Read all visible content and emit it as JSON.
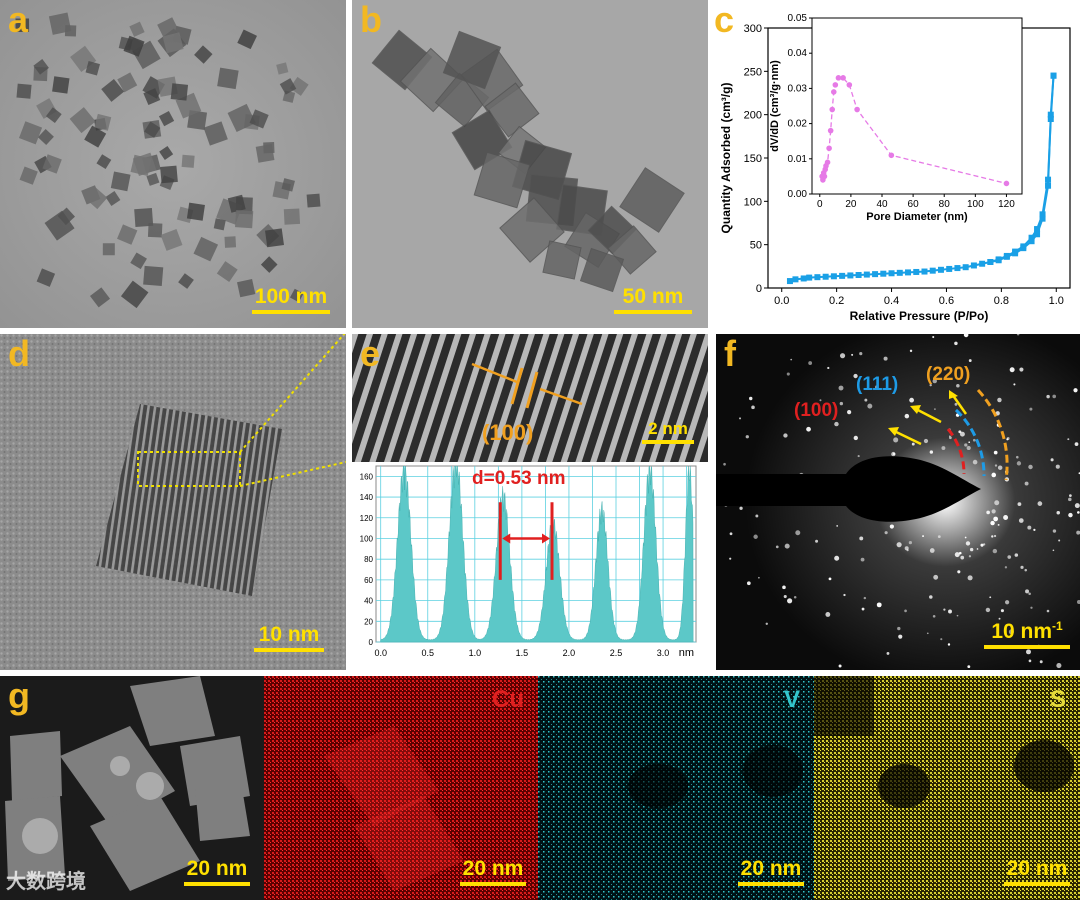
{
  "panels": {
    "a": {
      "label": "a",
      "scalebar": "100 nm"
    },
    "b": {
      "label": "b",
      "scalebar": "50 nm"
    },
    "c": {
      "label": "c"
    },
    "d": {
      "label": "d",
      "scalebar": "10 nm"
    },
    "e": {
      "label": "e",
      "scalebar": "2 nm",
      "plane": "(100)",
      "spacing": "d=0.53 nm"
    },
    "f": {
      "label": "f",
      "scalebar": "10 nm",
      "scalebar_sup": "-1",
      "rings": [
        "(100)",
        "(111)",
        "(220)"
      ]
    },
    "g": {
      "label": "g",
      "scalebar": "20 nm",
      "maps": [
        {
          "element": "Cu",
          "scalebar": "20 nm",
          "color": "#e02020"
        },
        {
          "element": "V",
          "scalebar": "20 nm",
          "color": "#33c6cc"
        },
        {
          "element": "S",
          "scalebar": "20 nm",
          "color": "#e6dc3a"
        }
      ]
    }
  },
  "watermark": "大数跨境",
  "colors": {
    "label_gold": "#f2b822",
    "scale_yellow": "#ffe000",
    "isotherm": "#1aa0e6",
    "pore": "#e67ae6",
    "profile_fill": "#5cc8c8",
    "red": "#e02020",
    "blue": "#1e9be6",
    "orange": "#f0a020"
  },
  "chart_data": [
    {
      "type": "line",
      "xlabel": "Relative Pressure (P/Po)",
      "ylabel": "Quantity Adsorbed (cm³/g)",
      "xlim": [
        -0.05,
        1.05
      ],
      "ylim": [
        0,
        300
      ],
      "xticks": [
        "0.0",
        "0.2",
        "0.4",
        "0.6",
        "0.8",
        "1.0"
      ],
      "yticks": [
        "0",
        "50",
        "100",
        "150",
        "200",
        "250",
        "300"
      ],
      "series": [
        {
          "x": [
            0.03,
            0.05,
            0.08,
            0.1,
            0.13,
            0.16,
            0.19,
            0.22,
            0.25,
            0.28,
            0.31,
            0.34,
            0.37,
            0.4,
            0.43,
            0.46,
            0.49,
            0.52,
            0.55,
            0.58,
            0.61,
            0.64,
            0.67,
            0.7,
            0.73,
            0.76,
            0.79,
            0.82,
            0.85,
            0.88,
            0.91,
            0.93,
            0.95,
            0.97,
            0.98,
            0.99
          ],
          "y": [
            8,
            10,
            11,
            12,
            12.5,
            13,
            13.5,
            14,
            14.5,
            15,
            15.5,
            16,
            16.5,
            17,
            17.5,
            18,
            18.5,
            19,
            20,
            21,
            22,
            23,
            24,
            26,
            28,
            30,
            33,
            37,
            42,
            48,
            58,
            68,
            85,
            125,
            195,
            245
          ]
        },
        {
          "x": [
            0.99,
            0.98,
            0.97,
            0.95,
            0.93,
            0.91,
            0.88,
            0.85,
            0.82,
            0.79,
            0.76
          ],
          "y": [
            245,
            200,
            118,
            80,
            62,
            54,
            46,
            40,
            36,
            32,
            30
          ]
        }
      ]
    },
    {
      "type": "line",
      "xlabel": "Pore Diameter (nm)",
      "ylabel": "dV/dD (cm³/g·nm)",
      "xlim": [
        -5,
        130
      ],
      "ylim": [
        0,
        0.05
      ],
      "xticks": [
        "0",
        "20",
        "40",
        "60",
        "80",
        "100",
        "120"
      ],
      "yticks": [
        "0.00",
        "0.01",
        "0.02",
        "0.03",
        "0.04",
        "0.05"
      ],
      "series": [
        {
          "x": [
            1.5,
            2,
            2.5,
            3,
            3.5,
            4,
            5,
            6,
            7,
            8,
            9,
            10,
            12,
            15,
            19,
            24,
            46,
            120
          ],
          "y": [
            0.005,
            0.004,
            0.006,
            0.005,
            0.007,
            0.008,
            0.009,
            0.013,
            0.018,
            0.024,
            0.029,
            0.031,
            0.033,
            0.033,
            0.031,
            0.024,
            0.011,
            0.003
          ]
        }
      ]
    },
    {
      "type": "area",
      "xlabel": "nm",
      "xlim": [
        -0.05,
        3.35
      ],
      "ylim": [
        0,
        170
      ],
      "xticks": [
        "0.0",
        "0.5",
        "1.0",
        "1.5",
        "2.0",
        "2.5",
        "3.0"
      ],
      "yticks": [
        "0",
        "20",
        "40",
        "60",
        "80",
        "100",
        "120",
        "140",
        "160"
      ],
      "peaks": [
        0.25,
        0.8,
        1.3,
        1.83,
        2.35,
        2.86,
        3.28
      ],
      "peak_values": [
        160,
        168,
        135,
        110,
        122,
        160,
        158
      ],
      "peak_widths": [
        0.1,
        0.1,
        0.1,
        0.1,
        0.09,
        0.09,
        0.06
      ],
      "baseline": 2
    }
  ]
}
